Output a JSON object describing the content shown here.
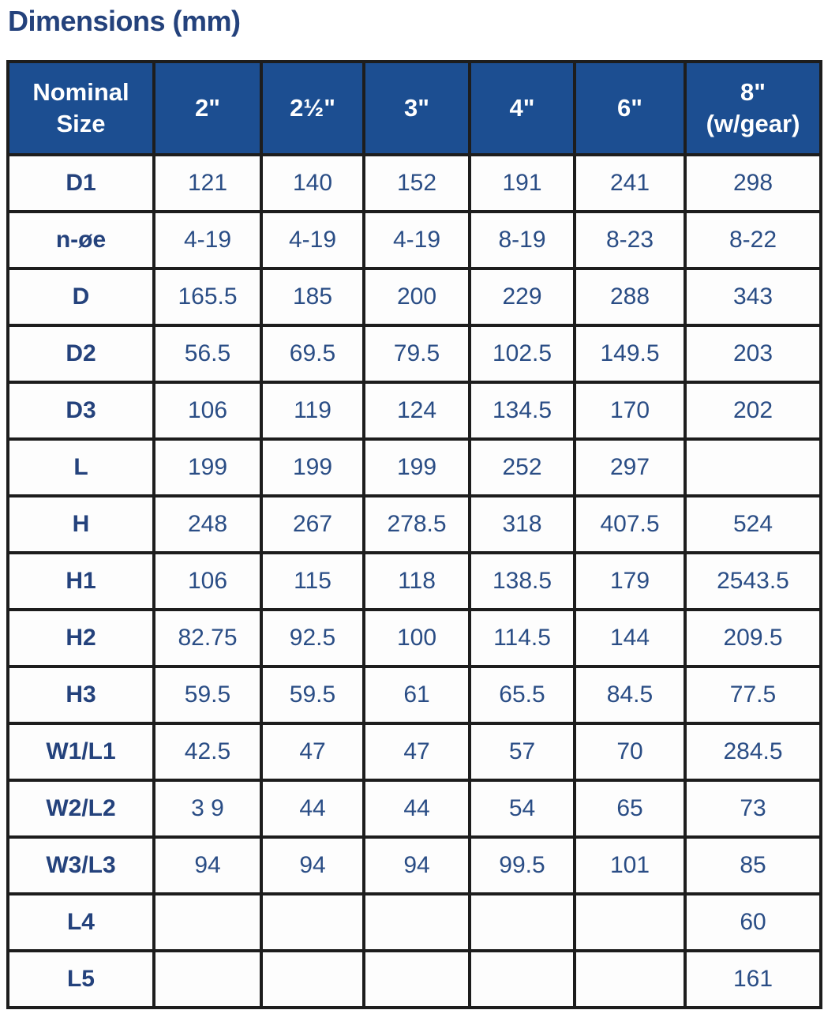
{
  "page": {
    "title": "Dimensions (mm)"
  },
  "colors": {
    "header_background": "#1C4E91",
    "header_text": "#FFFFFF",
    "value_text": "#2A4D85",
    "row_label_text": "#24427C",
    "title_text": "#24427C",
    "border": "#1D1D1D",
    "cell_background": "#FDFDFD"
  },
  "table": {
    "columns": [
      "Nominal\nSize",
      "2\"",
      "2½\"",
      "3\"",
      "4\"",
      "6\"",
      "8\"\n(w/gear)"
    ],
    "rows": [
      {
        "label": "D1",
        "values": [
          "121",
          "140",
          "152",
          "191",
          "241",
          "298"
        ]
      },
      {
        "label": "n-øe",
        "values": [
          "4-19",
          "4-19",
          "4-19",
          "8-19",
          "8-23",
          "8-22"
        ]
      },
      {
        "label": "D",
        "values": [
          "165.5",
          "185",
          "200",
          "229",
          "288",
          "343"
        ]
      },
      {
        "label": "D2",
        "values": [
          "56.5",
          "69.5",
          "79.5",
          "102.5",
          "149.5",
          "203"
        ]
      },
      {
        "label": "D3",
        "values": [
          "106",
          "119",
          "124",
          "134.5",
          "170",
          "202"
        ]
      },
      {
        "label": "L",
        "values": [
          "199",
          "199",
          "199",
          "252",
          "297",
          ""
        ]
      },
      {
        "label": "H",
        "values": [
          "248",
          "267",
          "278.5",
          "318",
          "407.5",
          "524"
        ]
      },
      {
        "label": "H1",
        "values": [
          "106",
          "115",
          "118",
          "138.5",
          "179",
          "2543.5"
        ]
      },
      {
        "label": "H2",
        "values": [
          "82.75",
          "92.5",
          "100",
          "114.5",
          "144",
          "209.5"
        ]
      },
      {
        "label": "H3",
        "values": [
          "59.5",
          "59.5",
          "61",
          "65.5",
          "84.5",
          "77.5"
        ]
      },
      {
        "label": "W1/L1",
        "values": [
          "42.5",
          "47",
          "47",
          "57",
          "70",
          "284.5"
        ]
      },
      {
        "label": "W2/L2",
        "values": [
          "3 9",
          "44",
          "44",
          "54",
          "65",
          "73"
        ]
      },
      {
        "label": "W3/L3",
        "values": [
          "94",
          "94",
          "94",
          "99.5",
          "101",
          "85"
        ]
      },
      {
        "label": "L4",
        "values": [
          "",
          "",
          "",
          "",
          "",
          "60"
        ]
      },
      {
        "label": "L5",
        "values": [
          "",
          "",
          "",
          "",
          "",
          "161"
        ]
      }
    ]
  }
}
